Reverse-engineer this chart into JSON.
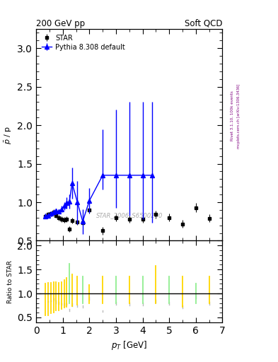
{
  "title_left": "200 GeV pp",
  "title_right": "Soft QCD",
  "ylabel_main": "$\\bar{p}$ / p",
  "ylabel_ratio": "Ratio to STAR",
  "xlabel": "$p_T$ [GeV]",
  "right_label_top": "Rivet 3.1.10, 100k events",
  "right_label_bot": "mcplots.cern.ch [arXiv:1306.3436]",
  "watermark": "STAR_2006_S6500200",
  "xlim": [
    0,
    7
  ],
  "ylim_main": [
    0.5,
    3.25
  ],
  "ylim_ratio": [
    0.4,
    2.1
  ],
  "star_x": [
    0.35,
    0.45,
    0.55,
    0.65,
    0.75,
    0.85,
    0.95,
    1.05,
    1.15,
    1.25,
    1.35,
    1.55,
    1.75,
    2.0,
    2.5,
    3.0,
    3.5,
    4.0,
    4.5,
    5.0,
    5.5,
    6.0,
    6.5
  ],
  "star_y": [
    0.82,
    0.84,
    0.85,
    0.87,
    0.83,
    0.8,
    0.78,
    0.77,
    0.78,
    0.65,
    0.76,
    0.74,
    0.73,
    0.9,
    0.63,
    0.8,
    0.78,
    0.78,
    0.84,
    0.8,
    0.72,
    0.93,
    0.79
  ],
  "star_yerr": [
    0.035,
    0.035,
    0.035,
    0.035,
    0.035,
    0.035,
    0.035,
    0.035,
    0.035,
    0.035,
    0.035,
    0.035,
    0.035,
    0.05,
    0.05,
    0.05,
    0.05,
    0.05,
    0.05,
    0.05,
    0.05,
    0.06,
    0.05
  ],
  "pythia_x": [
    0.35,
    0.45,
    0.55,
    0.65,
    0.75,
    0.85,
    0.95,
    1.05,
    1.15,
    1.25,
    1.35,
    1.55,
    1.75,
    2.0,
    2.5,
    3.0,
    3.5,
    4.0,
    4.35
  ],
  "pythia_y": [
    0.82,
    0.83,
    0.85,
    0.87,
    0.89,
    0.88,
    0.91,
    0.95,
    0.99,
    1.01,
    1.25,
    1.0,
    0.75,
    1.02,
    1.35,
    1.35,
    1.35,
    1.35,
    1.35
  ],
  "pythia_yerr_lo": [
    0.03,
    0.03,
    0.03,
    0.03,
    0.03,
    0.03,
    0.04,
    0.05,
    0.07,
    0.09,
    0.2,
    0.28,
    0.16,
    0.16,
    0.18,
    0.42,
    0.52,
    0.57,
    0.62
  ],
  "pythia_yerr_hi": [
    0.03,
    0.03,
    0.03,
    0.03,
    0.03,
    0.03,
    0.04,
    0.05,
    0.07,
    0.09,
    0.2,
    0.28,
    0.16,
    0.16,
    0.6,
    0.85,
    0.95,
    0.95,
    0.95
  ],
  "star_color": "black",
  "pythia_color": "blue",
  "ratio_yellow_x": [
    0.35,
    0.45,
    0.55,
    0.65,
    0.75,
    0.85,
    0.95,
    1.05,
    1.15,
    1.35,
    1.55,
    2.0,
    2.5,
    3.5,
    4.5,
    5.5,
    6.5
  ],
  "ratio_yellow_lo": [
    0.55,
    0.55,
    0.58,
    0.6,
    0.65,
    0.65,
    0.68,
    0.7,
    0.72,
    0.74,
    0.76,
    0.8,
    0.8,
    0.8,
    0.8,
    0.72,
    0.8
  ],
  "ratio_yellow_hi": [
    1.2,
    1.22,
    1.22,
    1.24,
    1.24,
    1.22,
    1.24,
    1.28,
    1.32,
    1.4,
    1.35,
    1.18,
    1.35,
    1.35,
    1.58,
    1.35,
    1.35
  ],
  "ratio_green_x": [
    1.25,
    1.75,
    3.0,
    4.0,
    5.0,
    6.0
  ],
  "ratio_green_lo": [
    0.8,
    0.8,
    0.8,
    0.8,
    0.8,
    0.8
  ],
  "ratio_green_hi": [
    1.62,
    1.35,
    1.35,
    1.35,
    1.35,
    1.2
  ],
  "ratio_grey_x": [
    0.35,
    0.45,
    0.55,
    0.65,
    0.75,
    0.85,
    0.95,
    1.05,
    1.15,
    1.25,
    1.35,
    1.55,
    1.75,
    2.0,
    2.5,
    3.0,
    3.5,
    4.0,
    4.5,
    5.0,
    5.5,
    6.0,
    6.5
  ],
  "ratio_grey_lo": [
    0.82,
    0.83,
    0.84,
    0.85,
    0.8,
    0.78,
    0.76,
    0.74,
    0.76,
    0.63,
    0.73,
    0.72,
    0.71,
    0.87,
    0.61,
    0.77,
    0.75,
    0.75,
    0.81,
    0.77,
    0.69,
    0.89,
    0.76
  ],
  "ratio_grey_hi": [
    0.82,
    0.84,
    0.86,
    0.89,
    0.86,
    0.82,
    0.8,
    0.79,
    0.8,
    0.67,
    0.79,
    0.76,
    0.75,
    0.93,
    0.65,
    0.83,
    0.81,
    0.81,
    0.87,
    0.83,
    0.75,
    0.97,
    0.82
  ]
}
